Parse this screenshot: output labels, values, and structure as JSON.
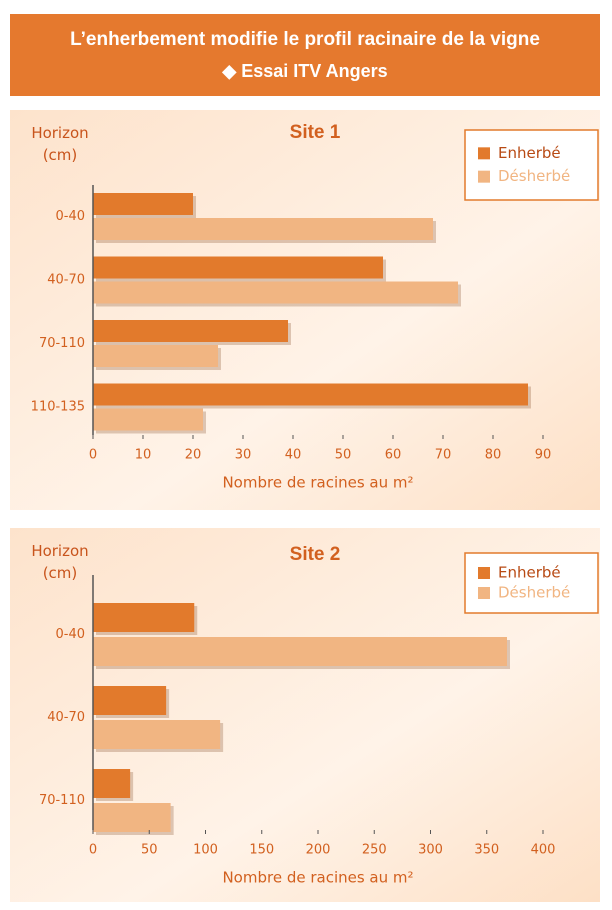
{
  "header": {
    "title": "L’enherbement modifie le profil racinaire de la vigne",
    "subtitle": "◆ Essai ITV Angers"
  },
  "chart_data": [
    {
      "type": "bar",
      "orientation": "horizontal",
      "title": "Site 1",
      "ylabel": "Horizon (cm)",
      "xlabel": "Nombre de racines au m²",
      "categories": [
        "0-40",
        "40-70",
        "70-110",
        "110-135"
      ],
      "series": [
        {
          "name": "Enherbé",
          "color": "#e27a2c",
          "values": [
            20,
            58,
            39,
            87
          ]
        },
        {
          "name": "Désherbé",
          "color": "#f1b582",
          "values": [
            68,
            73,
            25,
            22
          ]
        }
      ],
      "xlim": [
        0,
        90
      ],
      "xticks": [
        0,
        10,
        20,
        30,
        40,
        50,
        60,
        70,
        80,
        90
      ],
      "legend": "upper right"
    },
    {
      "type": "bar",
      "orientation": "horizontal",
      "title": "Site 2",
      "ylabel": "Horizon (cm)",
      "xlabel": "Nombre de racines au m²",
      "categories": [
        "0-40",
        "40-70",
        "70-110"
      ],
      "series": [
        {
          "name": "Enherbé",
          "color": "#e27a2c",
          "values": [
            90,
            65,
            33
          ]
        },
        {
          "name": "Désherbé",
          "color": "#f1b582",
          "values": [
            368,
            113,
            69
          ]
        }
      ],
      "xlim": [
        0,
        400
      ],
      "xticks": [
        0,
        50,
        100,
        150,
        200,
        250,
        300,
        350,
        400
      ],
      "legend": "upper right"
    }
  ]
}
